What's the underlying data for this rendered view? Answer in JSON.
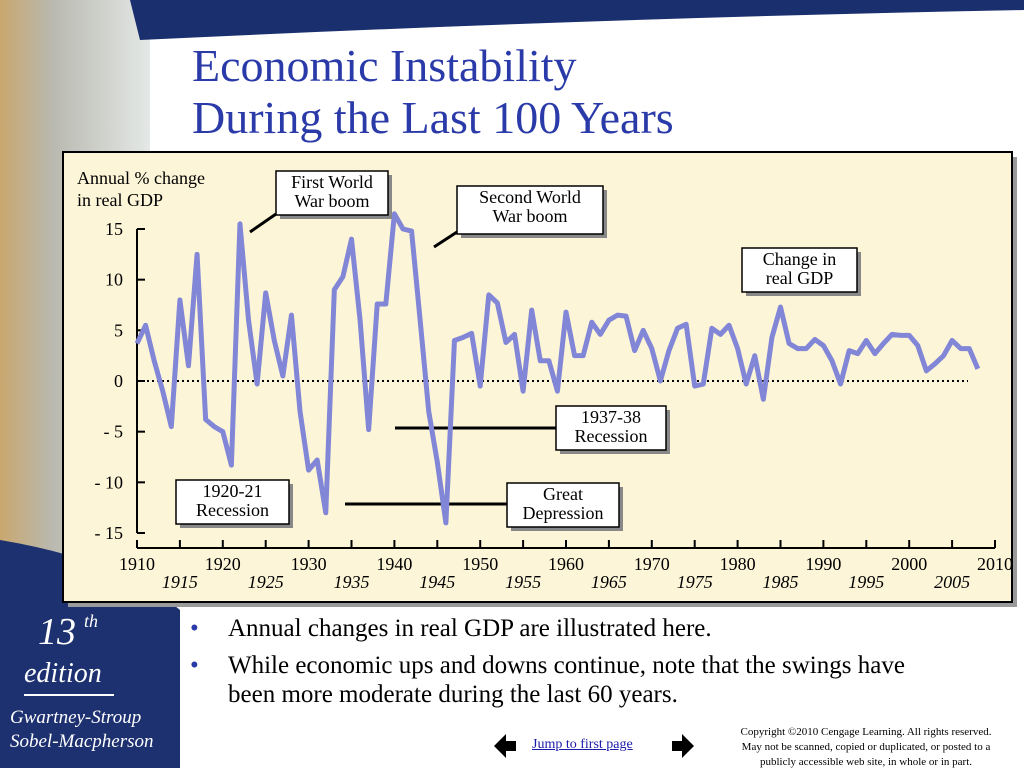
{
  "title": [
    "Economic Instability",
    "During the Last 100 Years"
  ],
  "chart_data": {
    "type": "line",
    "y_label": [
      "Annual % change",
      "in real GDP"
    ],
    "x": [
      1910,
      1911,
      1912,
      1913,
      1914,
      1915,
      1916,
      1917,
      1918,
      1919,
      1920,
      1921,
      1922,
      1923,
      1924,
      1925,
      1926,
      1927,
      1928,
      1929,
      1930,
      1931,
      1932,
      1933,
      1934,
      1935,
      1936,
      1937,
      1938,
      1939,
      1940,
      1941,
      1942,
      1943,
      1944,
      1945,
      1946,
      1947,
      1948,
      1949,
      1950,
      1951,
      1952,
      1953,
      1954,
      1955,
      1956,
      1957,
      1958,
      1959,
      1960,
      1961,
      1962,
      1963,
      1964,
      1965,
      1966,
      1967,
      1968,
      1969,
      1970,
      1971,
      1972,
      1973,
      1974,
      1975,
      1976,
      1977,
      1978,
      1979,
      1980,
      1981,
      1982,
      1983,
      1984,
      1985,
      1986,
      1987,
      1988,
      1989,
      1990,
      1991,
      1992,
      1993,
      1994,
      1995,
      1996,
      1997,
      1998,
      1999,
      2000,
      2001,
      2002,
      2003,
      2004,
      2005,
      2006,
      2007,
      2008
    ],
    "values": [
      3.7,
      5.5,
      2,
      -1,
      -4.5,
      8,
      1.5,
      12.5,
      -3.8,
      -4.5,
      -5,
      -8.3,
      15.5,
      6,
      -0.3,
      8.7,
      4,
      0.5,
      6.5,
      -3,
      -8.8,
      -7.8,
      -13,
      9,
      10.3,
      14,
      6,
      -4.8,
      7.6,
      7.6,
      16.5,
      15,
      14.8,
      6,
      -3,
      -8,
      -14,
      4,
      4.3,
      4.7,
      -0.5,
      8.5,
      7.7,
      3.8,
      4.6,
      -1,
      7,
      2,
      2,
      -1,
      6.8,
      2.5,
      2.5,
      5.8,
      4.6,
      6,
      6.5,
      6.4,
      3,
      5,
      3.2,
      0,
      3,
      5.2,
      5.6,
      -0.5,
      -0.3,
      5.2,
      4.6,
      5.5,
      3.2,
      -0.3,
      2.5,
      -1.8,
      4.3,
      7.3,
      3.7,
      3.2,
      3.2,
      4.1,
      3.5,
      2,
      -0.3,
      3,
      2.7,
      4,
      2.7,
      3.7,
      4.6,
      4.5,
      4.5,
      3.5,
      1,
      1.7,
      2.5,
      4,
      3.2,
      3.2,
      1.2
    ],
    "color": "#8286d6",
    "xlim": [
      1910,
      2010
    ],
    "xticks": [
      1910,
      1915,
      1920,
      1925,
      1930,
      1935,
      1940,
      1945,
      1950,
      1955,
      1960,
      1965,
      1970,
      1975,
      1980,
      1985,
      1990,
      1995,
      2000,
      2005,
      2010
    ],
    "ylim": [
      -15,
      15
    ],
    "yticks": [
      15,
      10,
      5,
      0,
      {
        "value": -5,
        "label": "- 5"
      },
      {
        "value": -10,
        "label": "- 10"
      },
      {
        "value": -15,
        "label": "- 15"
      }
    ],
    "zero_line": true,
    "annotations": [
      {
        "lines": [
          "First World",
          "War boom"
        ]
      },
      {
        "lines": [
          "Second World",
          "War boom"
        ]
      },
      {
        "lines": [
          "Change in",
          "real GDP"
        ]
      },
      {
        "lines": [
          "1937-38",
          "Recession"
        ]
      },
      {
        "lines": [
          "Great",
          "Depression"
        ]
      },
      {
        "lines": [
          "1920-21",
          "Recession"
        ]
      }
    ]
  },
  "bullets": [
    "Annual changes in real GDP are illustrated here.",
    "While economic ups and downs continue, note that the swings have been more moderate during the last 60 years."
  ],
  "navigation": {
    "link": "Jump to first page"
  },
  "copyright": [
    "Copyright ©2010 Cengage Learning. All rights reserved.",
    "May not be scanned, copied or duplicated, or posted to a",
    "publicly accessible web site, in whole or in part."
  ],
  "edition": {
    "number": "13",
    "suffix": "th",
    "word": "edition",
    "authors": [
      "Gwartney-Stroup",
      "Sobel-Macpherson"
    ]
  }
}
